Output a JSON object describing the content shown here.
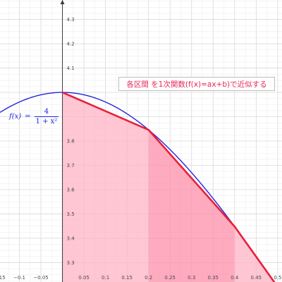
{
  "chart_data": {
    "type": "line",
    "title": "",
    "xlabel": "",
    "ylabel": "",
    "xlim": [
      -0.145,
      0.51
    ],
    "ylim": [
      3.22,
      4.38
    ],
    "grid": true,
    "x_ticks": [
      -0.15,
      -0.1,
      -0.05,
      0.05,
      0.1,
      0.15,
      0.2,
      0.25,
      0.3,
      0.35,
      0.4,
      0.45,
      0.5
    ],
    "x_tick_labels": [
      "−0.15",
      "−0.1",
      "−0.05",
      "0.05",
      "0.1",
      "0.15",
      "0.2",
      "0.25",
      "0.3",
      "0.35",
      "0.4",
      "0.45",
      "0.5"
    ],
    "y_ticks": [
      3.3,
      3.4,
      3.5,
      3.6,
      3.7,
      3.8,
      3.9,
      4,
      4.1,
      4.2,
      4.3
    ],
    "y_tick_labels": [
      "3.3",
      "3.4",
      "3.5",
      "3.6",
      "3.7",
      "3.8",
      "3.9",
      "4",
      "4.1",
      "4.2",
      "4.3"
    ],
    "hidden_y_ticks": [
      3.9,
      4
    ],
    "series": [
      {
        "function": "4/(1+x^2)",
        "color": "#2424e0",
        "x_range": [
          -0.145,
          0.51
        ]
      },
      {
        "x": [
          0,
          0.2,
          0.4,
          0.5
        ],
        "y": [
          4,
          3.846,
          3.448,
          3.2
        ],
        "color": "#e8203a"
      }
    ],
    "regions": [
      {
        "x_from": 0.0,
        "x_to": 0.2,
        "color": "#ffb3c6",
        "opacity": 0.75
      },
      {
        "x_from": 0.2,
        "x_to": 0.4,
        "color": "#ff8faa",
        "opacity": 0.75
      },
      {
        "x_from": 0.4,
        "x_to": 0.5,
        "color": "#ffb3c6",
        "opacity": 0.75
      }
    ],
    "annotations": {
      "note": "各区間 を1次関数(f(x)=ax+b)で近似する",
      "note_color": "#e8265a",
      "function_label": {
        "name": "f(x)",
        "equals": "=",
        "numerator": "4",
        "denominator": "1 + x²",
        "color": "#2424e0"
      }
    }
  }
}
